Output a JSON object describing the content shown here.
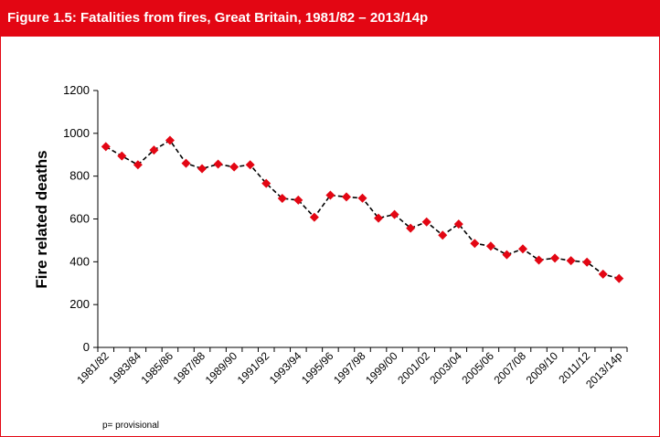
{
  "header": {
    "title": "Figure 1.5:  Fatalities from fires, Great Britain, 1981/82 – 2013/14p"
  },
  "footnote": "p= provisional",
  "colors": {
    "header_bg": "#e30613",
    "marker": "#e30613",
    "line": "#000000"
  },
  "chart_data": {
    "type": "line",
    "title": "Figure 1.5:  Fatalities from fires, Great Britain, 1981/82 – 2013/14p",
    "xlabel": "",
    "ylabel": "Fire related deaths",
    "ylim": [
      0,
      1200
    ],
    "yticks": [
      0,
      200,
      400,
      600,
      800,
      1000,
      1200
    ],
    "grid": false,
    "legend": "none",
    "x": [
      "1981/82",
      "1982/83",
      "1983/84",
      "1984/85",
      "1985/86",
      "1986/87",
      "1987/88",
      "1988/89",
      "1989/90",
      "1990/91",
      "1991/92",
      "1992/93",
      "1993/94",
      "1994/95",
      "1995/96",
      "1996/97",
      "1997/98",
      "1998/99",
      "1999/00",
      "2000/01",
      "2001/02",
      "2002/03",
      "2003/04",
      "2004/05",
      "2005/06",
      "2006/07",
      "2007/08",
      "2008/09",
      "2009/10",
      "2010/11",
      "2011/12",
      "2012/13",
      "2013/14p"
    ],
    "xtick_labels": [
      "1981/82",
      "1983/84",
      "1985/86",
      "1987/88",
      "1989/90",
      "1991/92",
      "1993/94",
      "1995/96",
      "1997/98",
      "1999/00",
      "2001/02",
      "2003/04",
      "2005/06",
      "2007/08",
      "2009/10",
      "2011/12",
      "2013/14p"
    ],
    "series": [
      {
        "values": [
          938,
          894,
          853,
          922,
          967,
          860,
          835,
          856,
          843,
          853,
          766,
          696,
          688,
          608,
          711,
          703,
          697,
          604,
          621,
          557,
          586,
          524,
          576,
          486,
          473,
          433,
          460,
          408,
          417,
          405,
          398,
          342,
          322
        ]
      }
    ]
  }
}
